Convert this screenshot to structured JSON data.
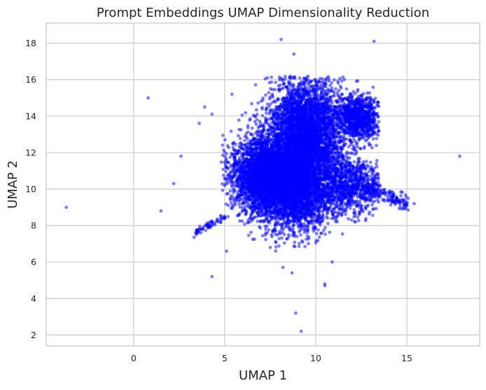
{
  "chart_data": {
    "type": "scatter",
    "title": "Prompt Embeddings UMAP Dimensionality Reduction",
    "xlabel": "UMAP 1",
    "ylabel": "UMAP 2",
    "xlim": [
      -4.8,
      19.0
    ],
    "ylim": [
      1.4,
      19.1
    ],
    "x_ticks": [
      0,
      5,
      10,
      15
    ],
    "y_ticks": [
      2,
      4,
      6,
      8,
      10,
      12,
      14,
      16,
      18
    ],
    "grid": true,
    "point_color": "#0000ff",
    "point_alpha": 0.5,
    "cluster": {
      "description_points": "dense cluster centered near (9.0, 11.8)",
      "x_range": [
        4.8,
        13.5
      ],
      "y_range": [
        6.8,
        16.2
      ],
      "approx_point_count": 12000
    },
    "outliers": [
      {
        "x": -3.7,
        "y": 9.0
      },
      {
        "x": 0.8,
        "y": 15.0
      },
      {
        "x": 1.5,
        "y": 8.8
      },
      {
        "x": 2.2,
        "y": 10.3
      },
      {
        "x": 2.6,
        "y": 11.8
      },
      {
        "x": 3.6,
        "y": 13.6
      },
      {
        "x": 3.9,
        "y": 14.5
      },
      {
        "x": 4.3,
        "y": 5.2
      },
      {
        "x": 4.3,
        "y": 14.1
      },
      {
        "x": 5.1,
        "y": 6.6
      },
      {
        "x": 5.4,
        "y": 15.2
      },
      {
        "x": 7.5,
        "y": 6.8
      },
      {
        "x": 7.8,
        "y": 6.6
      },
      {
        "x": 8.1,
        "y": 18.2
      },
      {
        "x": 8.2,
        "y": 5.7
      },
      {
        "x": 8.7,
        "y": 5.4
      },
      {
        "x": 8.8,
        "y": 17.4
      },
      {
        "x": 8.9,
        "y": 3.2
      },
      {
        "x": 9.2,
        "y": 2.2
      },
      {
        "x": 10.5,
        "y": 4.8
      },
      {
        "x": 10.5,
        "y": 4.7
      },
      {
        "x": 10.9,
        "y": 6.0
      },
      {
        "x": 13.2,
        "y": 18.1
      },
      {
        "x": 14.8,
        "y": 8.9
      },
      {
        "x": 15.4,
        "y": 9.2
      },
      {
        "x": 17.9,
        "y": 11.8
      },
      {
        "x": 3.4,
        "y": 7.6
      },
      {
        "x": 3.7,
        "y": 7.8
      },
      {
        "x": 4.0,
        "y": 8.1
      }
    ]
  }
}
